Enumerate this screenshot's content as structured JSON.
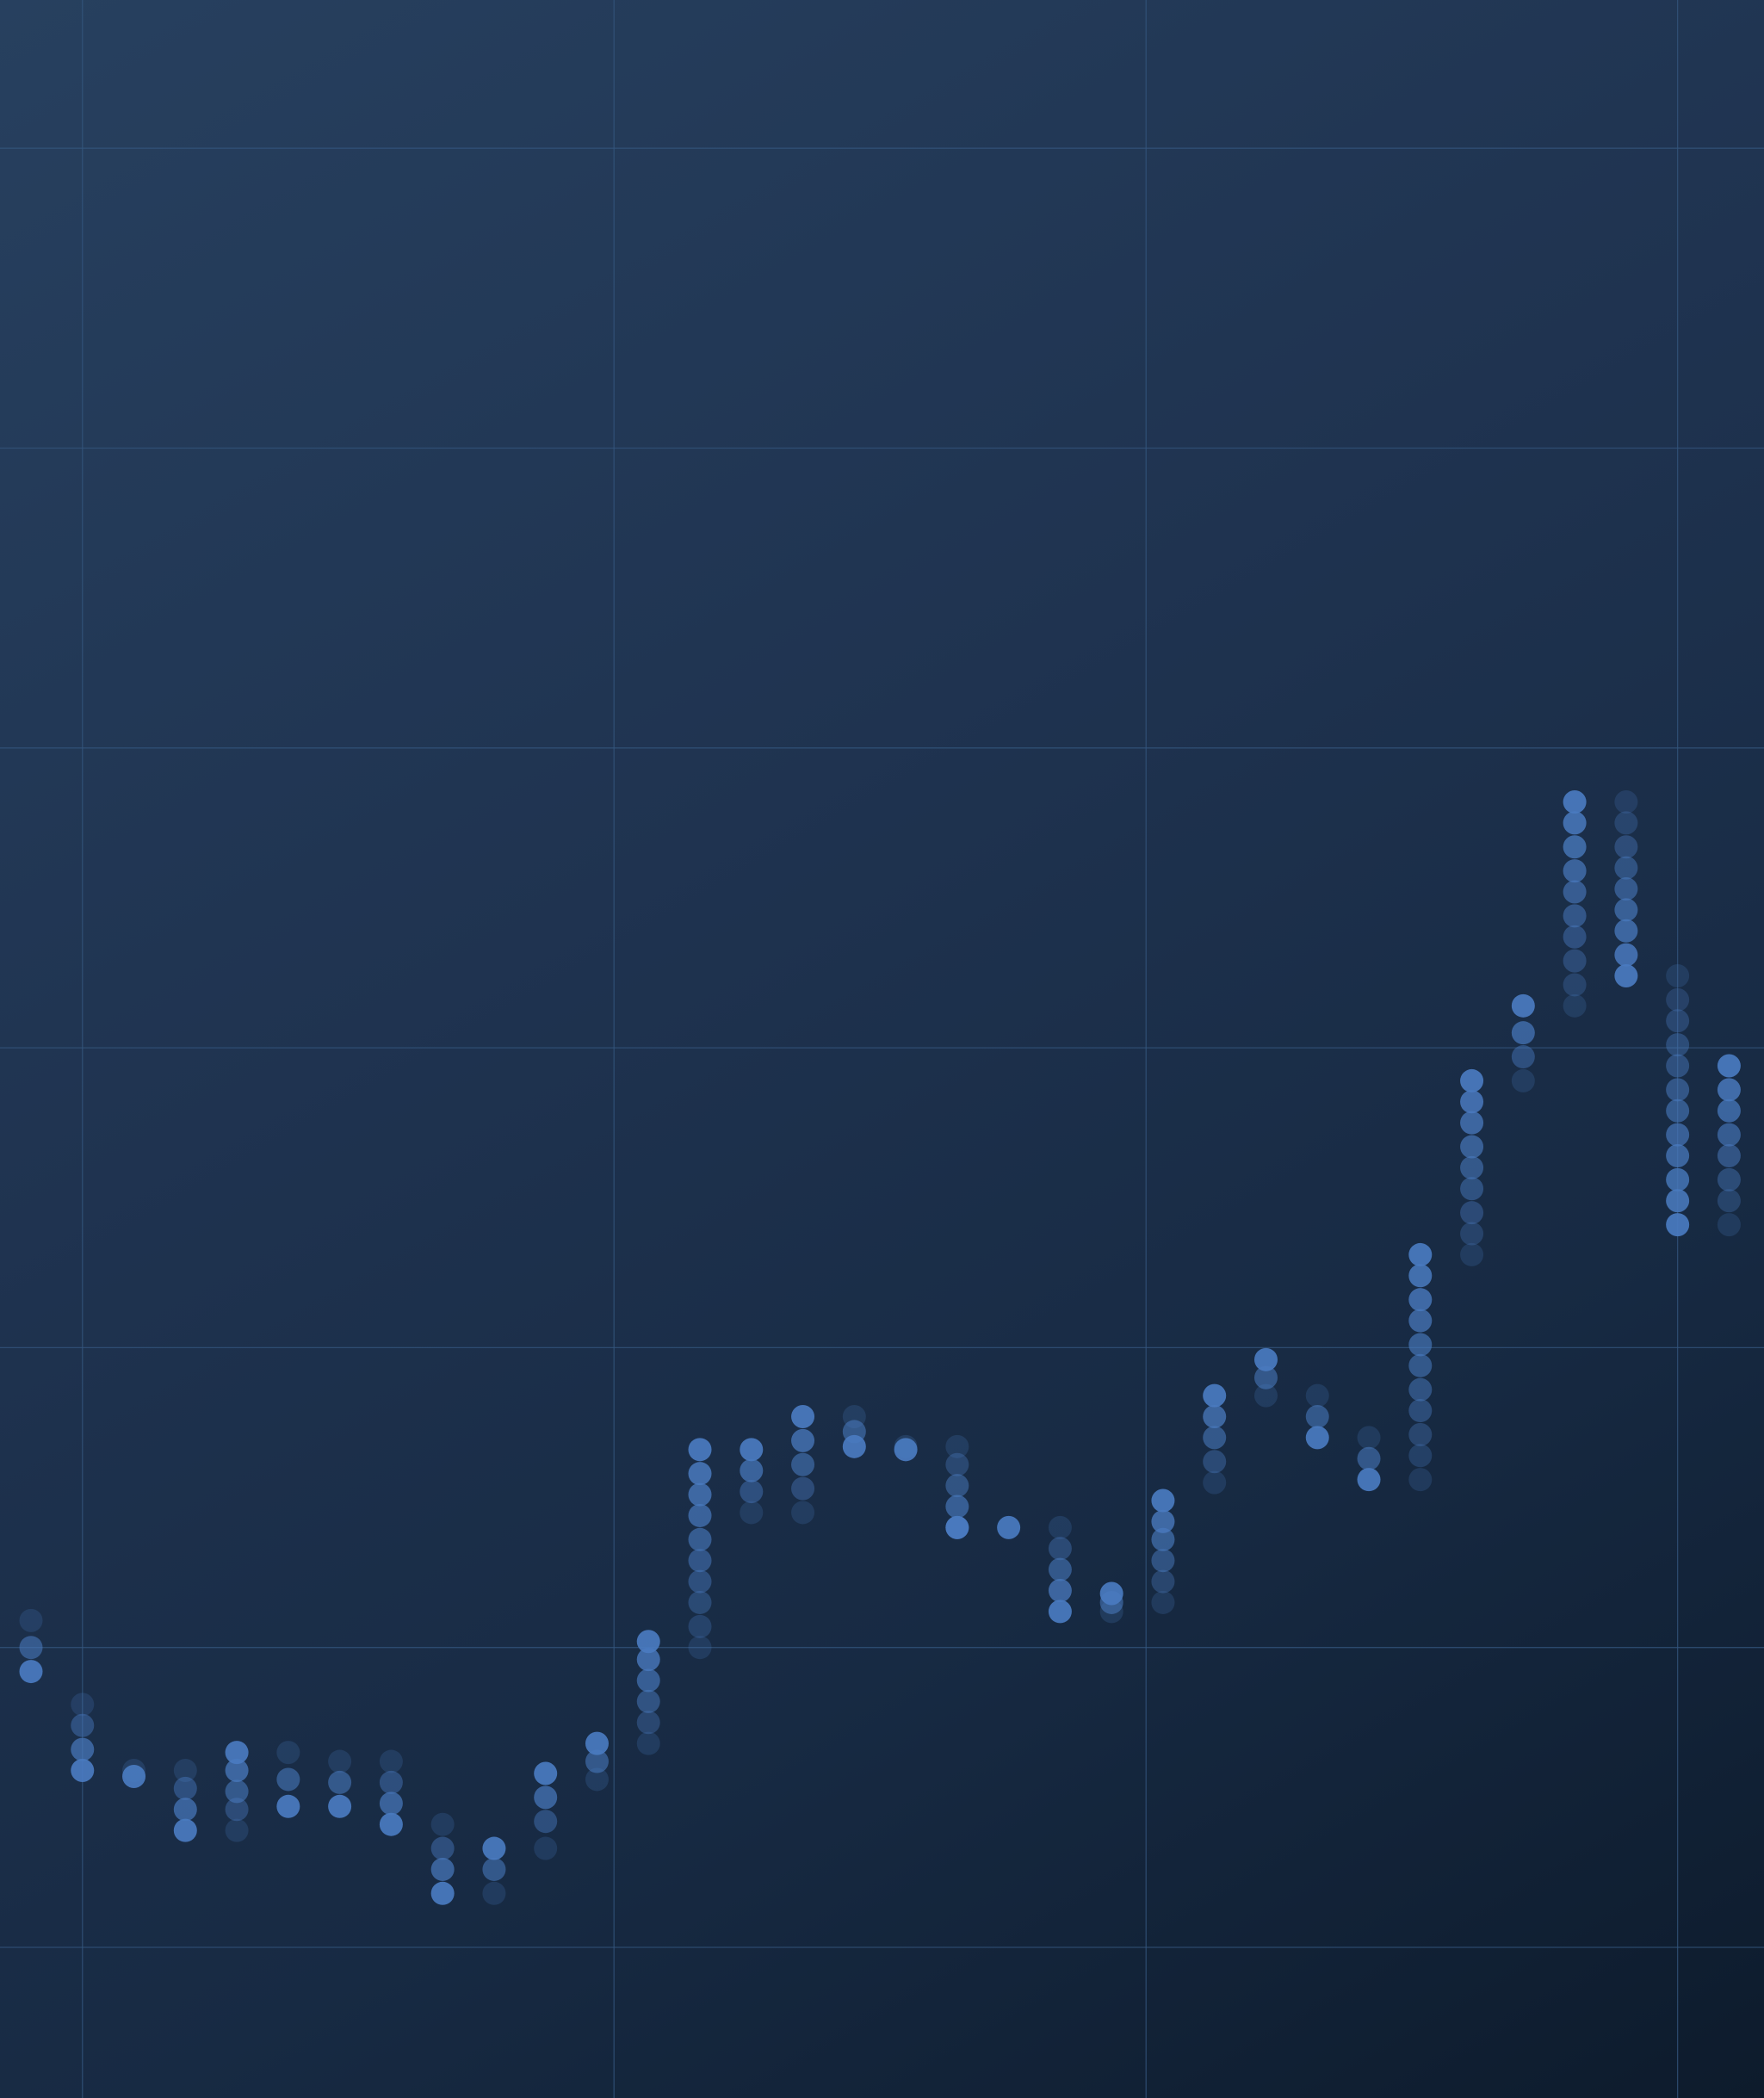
{
  "chart_data": {
    "type": "scatter",
    "title": "",
    "xlabel": "",
    "ylabel": "",
    "grid": true,
    "legend": "none",
    "xlim": [
      0,
      34
    ],
    "ylim": [
      -0.5,
      6.5
    ],
    "colors": {
      "background_start": "#27405f",
      "background_end": "#0d1b2c",
      "gridline": "#34567e",
      "point": "#4a7bc0"
    },
    "x_gridlines": [
      1,
      11.33,
      21.67,
      32
    ],
    "y_gridlines": [
      0,
      1,
      2,
      3,
      4,
      5,
      6
    ],
    "columns": [
      {
        "x": 0,
        "direction": "down",
        "values": [
          1.09,
          1.0,
          0.92
        ]
      },
      {
        "x": 1,
        "direction": "down",
        "values": [
          0.81,
          0.74,
          0.66,
          0.59
        ]
      },
      {
        "x": 2,
        "direction": "down",
        "values": [
          0.59,
          0.57
        ]
      },
      {
        "x": 3,
        "direction": "down",
        "values": [
          0.59,
          0.53,
          0.46,
          0.39
        ]
      },
      {
        "x": 4,
        "direction": "up",
        "values": [
          0.39,
          0.46,
          0.52,
          0.59,
          0.65
        ]
      },
      {
        "x": 5,
        "direction": "down",
        "values": [
          0.65,
          0.56,
          0.47
        ]
      },
      {
        "x": 6,
        "direction": "down",
        "values": [
          0.62,
          0.55,
          0.47
        ]
      },
      {
        "x": 7,
        "direction": "down",
        "values": [
          0.62,
          0.55,
          0.48,
          0.41
        ]
      },
      {
        "x": 8,
        "direction": "down",
        "values": [
          0.41,
          0.33,
          0.26,
          0.18
        ]
      },
      {
        "x": 9,
        "direction": "up",
        "values": [
          0.18,
          0.26,
          0.33
        ]
      },
      {
        "x": 10,
        "direction": "up",
        "values": [
          0.33,
          0.42,
          0.5,
          0.58
        ]
      },
      {
        "x": 11,
        "direction": "up",
        "values": [
          0.56,
          0.62,
          0.68
        ]
      },
      {
        "x": 12,
        "direction": "up",
        "values": [
          0.68,
          0.75,
          0.82,
          0.89,
          0.96,
          1.02
        ]
      },
      {
        "x": 13,
        "direction": "up",
        "values": [
          1.0,
          1.07,
          1.15,
          1.22,
          1.29,
          1.36,
          1.44,
          1.51,
          1.58,
          1.66
        ]
      },
      {
        "x": 14,
        "direction": "up",
        "values": [
          1.45,
          1.52,
          1.59,
          1.66
        ]
      },
      {
        "x": 15,
        "direction": "up",
        "values": [
          1.45,
          1.53,
          1.61,
          1.69,
          1.77
        ]
      },
      {
        "x": 16,
        "direction": "down",
        "values": [
          1.77,
          1.72,
          1.67
        ]
      },
      {
        "x": 17,
        "direction": "down",
        "values": [
          1.67,
          1.66
        ]
      },
      {
        "x": 18,
        "direction": "up",
        "values": [
          1.67,
          1.61,
          1.54,
          1.47,
          1.4,
          1.4
        ]
      },
      {
        "x": 19,
        "direction": "down",
        "values": [
          1.4
        ]
      },
      {
        "x": 20,
        "direction": "down",
        "values": [
          1.4,
          1.33,
          1.26,
          1.19,
          1.12
        ]
      },
      {
        "x": 21,
        "direction": "up",
        "values": [
          1.12,
          1.15,
          1.18
        ]
      },
      {
        "x": 22,
        "direction": "up",
        "values": [
          1.15,
          1.22,
          1.29,
          1.36,
          1.42,
          1.49
        ]
      },
      {
        "x": 23,
        "direction": "up",
        "values": [
          1.55,
          1.62,
          1.7,
          1.77,
          1.84
        ]
      },
      {
        "x": 24,
        "direction": "up",
        "values": [
          1.84,
          1.9,
          1.96
        ]
      },
      {
        "x": 25,
        "direction": "down",
        "values": [
          1.84,
          1.77,
          1.7
        ]
      },
      {
        "x": 26,
        "direction": "down",
        "values": [
          1.7,
          1.63,
          1.56
        ]
      },
      {
        "x": 27,
        "direction": "up",
        "values": [
          1.56,
          1.64,
          1.71,
          1.79,
          1.86,
          1.94,
          2.01,
          2.09,
          2.16,
          2.24,
          2.31
        ]
      },
      {
        "x": 28,
        "direction": "up",
        "values": [
          2.31,
          2.38,
          2.45,
          2.53,
          2.6,
          2.67,
          2.75,
          2.82,
          2.89
        ]
      },
      {
        "x": 29,
        "direction": "up",
        "values": [
          2.89,
          2.97,
          3.05,
          3.14
        ]
      },
      {
        "x": 30,
        "direction": "up",
        "values": [
          3.14,
          3.21,
          3.29,
          3.37,
          3.44,
          3.52,
          3.59,
          3.67,
          3.75,
          3.82
        ]
      },
      {
        "x": 31,
        "direction": "down",
        "values": [
          3.82,
          3.75,
          3.67,
          3.6,
          3.53,
          3.46,
          3.39,
          3.31,
          3.24
        ]
      },
      {
        "x": 32,
        "direction": "down",
        "values": [
          3.24,
          3.16,
          3.09,
          3.01,
          2.94,
          2.86,
          2.79,
          2.71,
          2.64,
          2.56,
          2.49,
          2.41
        ]
      },
      {
        "x": 33,
        "direction": "up",
        "values": [
          2.41,
          2.49,
          2.56,
          2.64,
          2.71,
          2.79,
          2.86,
          2.94
        ]
      }
    ]
  }
}
